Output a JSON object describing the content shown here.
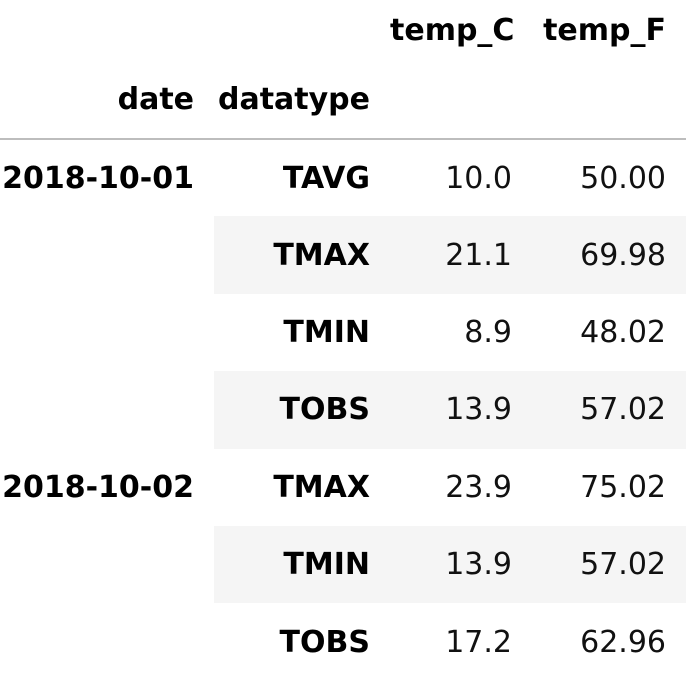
{
  "columns": {
    "temp_c": "temp_C",
    "temp_f": "temp_F"
  },
  "index_names": {
    "date": "date",
    "datatype": "datatype"
  },
  "rows": [
    {
      "date": "2018-10-01",
      "datatype": "TAVG",
      "temp_c": "10.0",
      "temp_f": "50.00"
    },
    {
      "date": "",
      "datatype": "TMAX",
      "temp_c": "21.1",
      "temp_f": "69.98"
    },
    {
      "date": "",
      "datatype": "TMIN",
      "temp_c": "8.9",
      "temp_f": "48.02"
    },
    {
      "date": "",
      "datatype": "TOBS",
      "temp_c": "13.9",
      "temp_f": "57.02"
    },
    {
      "date": "2018-10-02",
      "datatype": "TMAX",
      "temp_c": "23.9",
      "temp_f": "75.02"
    },
    {
      "date": "",
      "datatype": "TMIN",
      "temp_c": "13.9",
      "temp_f": "57.02"
    },
    {
      "date": "",
      "datatype": "TOBS",
      "temp_c": "17.2",
      "temp_f": "62.96"
    }
  ]
}
